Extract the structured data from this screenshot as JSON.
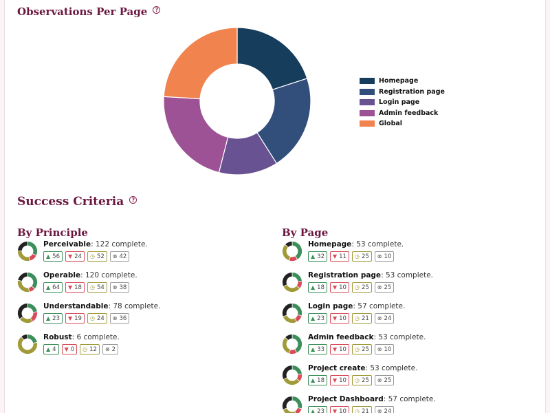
{
  "observations": {
    "title": "Observations Per Page",
    "help": "?"
  },
  "chart_data": {
    "type": "pie",
    "donut": true,
    "categories": [
      "Homepage",
      "Registration page",
      "Login page",
      "Admin feedback",
      "Global"
    ],
    "values": [
      20,
      21,
      13,
      22,
      24
    ],
    "colors": [
      "#163d5c",
      "#324e7b",
      "#685291",
      "#9c5294",
      "#f0834e"
    ],
    "legend_position": "right"
  },
  "success": {
    "title": "Success Criteria",
    "help": "?"
  },
  "by_principle": {
    "title": "By Principle",
    "items": [
      {
        "name": "Perceivable",
        "complete": ": 122 complete.",
        "pass": "56",
        "fail": "24",
        "review": "52",
        "na": "42"
      },
      {
        "name": "Operable",
        "complete": ": 120 complete.",
        "pass": "64",
        "fail": "18",
        "review": "54",
        "na": "38"
      },
      {
        "name": "Understandable",
        "complete": ": 78 complete.",
        "pass": "23",
        "fail": "19",
        "review": "24",
        "na": "36"
      },
      {
        "name": "Robust",
        "complete": ": 6 complete.",
        "pass": "4",
        "fail": "0",
        "review": "12",
        "na": "2"
      }
    ]
  },
  "by_page": {
    "title": "By Page",
    "items": [
      {
        "name": "Homepage",
        "complete": ": 53 complete.",
        "pass": "32",
        "fail": "11",
        "review": "25",
        "na": "10"
      },
      {
        "name": "Registration page",
        "complete": ": 53 complete.",
        "pass": "18",
        "fail": "10",
        "review": "25",
        "na": "25"
      },
      {
        "name": "Login page",
        "complete": ": 57 complete.",
        "pass": "23",
        "fail": "10",
        "review": "21",
        "na": "24"
      },
      {
        "name": "Admin feedback",
        "complete": ": 53 complete.",
        "pass": "33",
        "fail": "10",
        "review": "25",
        "na": "10"
      },
      {
        "name": "Project create",
        "complete": ": 53 complete.",
        "pass": "18",
        "fail": "10",
        "review": "25",
        "na": "25"
      },
      {
        "name": "Project Dashboard",
        "complete": ": 57 complete.",
        "pass": "23",
        "fail": "10",
        "review": "21",
        "na": "24"
      }
    ]
  },
  "icons": {
    "pass": "thumbs-up-icon",
    "fail": "thumbs-down-icon",
    "review": "clock-icon",
    "na": "not-applicable-icon"
  },
  "status_colors": {
    "pass": "#3c8f5a",
    "fail": "#d94b58",
    "review": "#a09a38",
    "na": "#222222"
  }
}
